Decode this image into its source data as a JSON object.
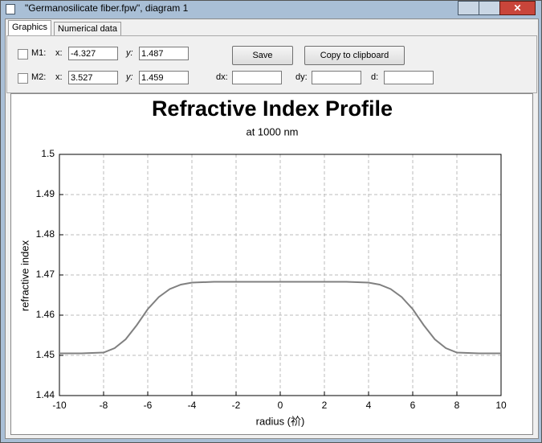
{
  "window": {
    "title": "\"Germanosilicate fiber.fpw\", diagram 1"
  },
  "tabs": [
    "Graphics",
    "Numerical data"
  ],
  "markers": [
    {
      "label": "M1:",
      "x_label": "x:",
      "x": "-4.327",
      "y_label": "y:",
      "y": "1.487"
    },
    {
      "label": "M2:",
      "x_label": "x:",
      "x": "3.527",
      "y_label": "y:",
      "y": "1.459"
    }
  ],
  "buttons": [
    "Save",
    "Copy to clipboard"
  ],
  "distance_fields": [
    "dx:",
    "dy:",
    "d:"
  ],
  "chart_data": {
    "type": "line",
    "title": "Refractive Index Profile",
    "subtitle": "at 1000 nm",
    "x_label": "radius (祄)",
    "y_label": "refractive index",
    "x": [
      -10,
      -9,
      -8,
      -7.5,
      -7,
      -6.5,
      -6,
      -5.5,
      -5,
      -4.5,
      -4,
      -3,
      -2,
      -1,
      0,
      1,
      2,
      3,
      4,
      4.5,
      5,
      5.5,
      6,
      6.5,
      7,
      7.5,
      8,
      9,
      10
    ],
    "values": [
      1.4505,
      1.4505,
      1.4507,
      1.4518,
      1.454,
      1.4575,
      1.4615,
      1.4645,
      1.4665,
      1.4676,
      1.4681,
      1.4683,
      1.4683,
      1.4683,
      1.4683,
      1.4683,
      1.4683,
      1.4683,
      1.4681,
      1.4676,
      1.4665,
      1.4645,
      1.4615,
      1.4575,
      1.454,
      1.4518,
      1.4507,
      1.4505,
      1.4505
    ],
    "color": "#808080",
    "xlim": [
      -10,
      10
    ],
    "xticks": [
      -10,
      -8,
      -6,
      -4,
      -2,
      0,
      2,
      4,
      6,
      8,
      10
    ],
    "ylim": [
      1.44,
      1.5
    ],
    "yticks": [
      1.44,
      1.45,
      1.46,
      1.47,
      1.48,
      1.49,
      1.5
    ],
    "grid": true
  }
}
